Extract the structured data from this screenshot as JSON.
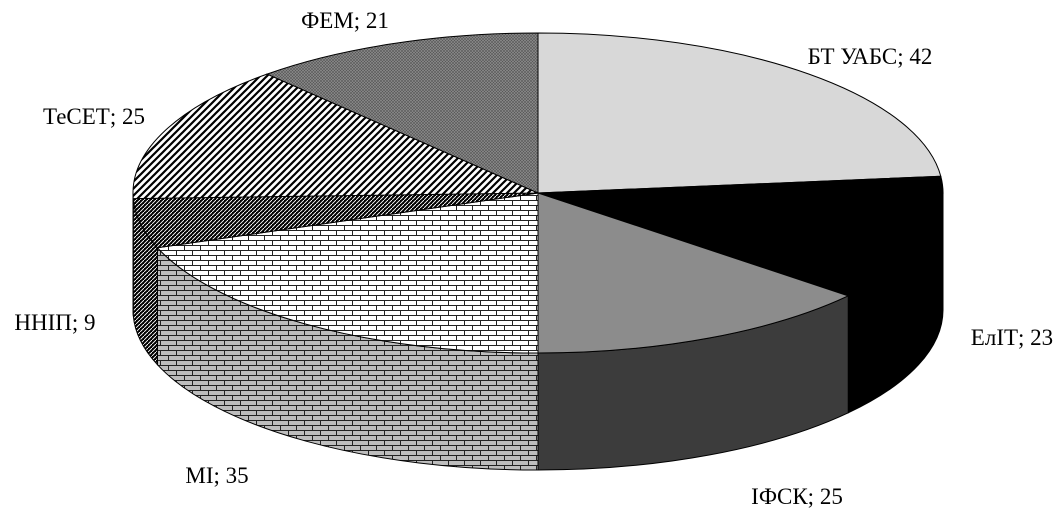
{
  "chart_data": {
    "type": "pie",
    "style": "3d",
    "title": "",
    "start": "12 o'clock",
    "direction": "clockwise",
    "colors": [
      "#d8d8d8",
      "#000000",
      "#8c8c8c",
      "#ffffff",
      "#000000",
      "#ffffff",
      "#8c8c8c"
    ],
    "slices": [
      {
        "name": "БТ УАБС",
        "value": 42,
        "label": "БТ УАБС; 42",
        "pattern": "solid"
      },
      {
        "name": "ЕлІТ",
        "value": 23,
        "label": "ЕлІТ; 23",
        "pattern": "solid"
      },
      {
        "name": "ІФСК",
        "value": 25,
        "label": "ІФСК; 25",
        "pattern": "solid"
      },
      {
        "name": "МІ",
        "value": 35,
        "label": "МІ; 35",
        "pattern": "brick"
      },
      {
        "name": "ННІП",
        "value": 9,
        "label": "ННІП; 9",
        "pattern": "dense-diagonal"
      },
      {
        "name": "ТеСЕТ",
        "value": 25,
        "label": "ТеСЕТ; 25",
        "pattern": "diagonal-hatch"
      },
      {
        "name": "ФЕМ",
        "value": 21,
        "label": "ФЕМ; 21",
        "pattern": "crosshatch"
      }
    ]
  }
}
